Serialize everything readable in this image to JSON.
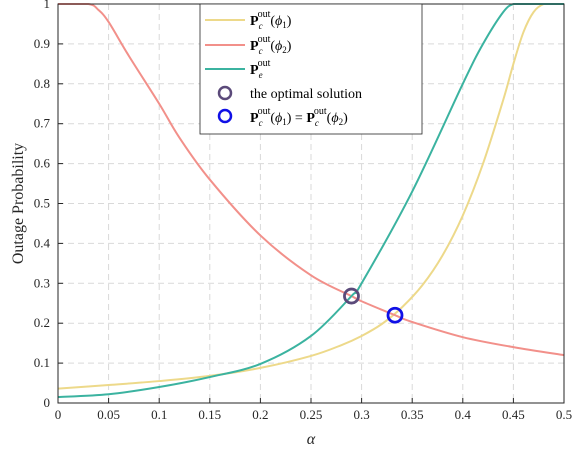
{
  "chart_data": {
    "type": "line",
    "xlabel": "α",
    "ylabel": "Outage Probability",
    "xlim": [
      0,
      0.5
    ],
    "ylim": [
      0,
      1
    ],
    "xticks": [
      0,
      0.05,
      0.1,
      0.15,
      0.2,
      0.25,
      0.3,
      0.35,
      0.4,
      0.45,
      0.5
    ],
    "xtick_labels": [
      "0",
      "0.05",
      "0.1",
      "0.15",
      "0.2",
      "0.25",
      "0.3",
      "0.35",
      "0.4",
      "0.45",
      "0.5"
    ],
    "yticks": [
      0,
      0.1,
      0.2,
      0.3,
      0.4,
      0.5,
      0.6,
      0.7,
      0.8,
      0.9,
      1
    ],
    "ytick_labels": [
      "0",
      "0.1",
      "0.2",
      "0.3",
      "0.4",
      "0.5",
      "0.6",
      "0.7",
      "0.8",
      "0.9",
      "1"
    ],
    "grid": true,
    "legend_position": "top-center",
    "series": [
      {
        "name": "P_c^out(φ1)",
        "color": "#EDD98A",
        "x": [
          0,
          0.05,
          0.1,
          0.15,
          0.2,
          0.25,
          0.28,
          0.3,
          0.32,
          0.34,
          0.36,
          0.38,
          0.4,
          0.42,
          0.44,
          0.45,
          0.46,
          0.47,
          0.48,
          0.49,
          0.5
        ],
        "y": [
          0.036,
          0.045,
          0.055,
          0.068,
          0.088,
          0.118,
          0.145,
          0.168,
          0.198,
          0.24,
          0.295,
          0.37,
          0.47,
          0.6,
          0.76,
          0.85,
          0.93,
          0.98,
          1.0,
          1.0,
          1.0
        ]
      },
      {
        "name": "P_c^out(φ2)",
        "color": "#F2908A",
        "x": [
          0,
          0.03,
          0.04,
          0.05,
          0.07,
          0.1,
          0.12,
          0.15,
          0.2,
          0.25,
          0.29,
          0.3,
          0.333,
          0.35,
          0.4,
          0.45,
          0.5
        ],
        "y": [
          1.0,
          1.0,
          0.985,
          0.955,
          0.87,
          0.75,
          0.665,
          0.56,
          0.42,
          0.32,
          0.268,
          0.255,
          0.22,
          0.203,
          0.165,
          0.14,
          0.12
        ]
      },
      {
        "name": "P_e^out",
        "color": "#3BB3A0",
        "x": [
          0,
          0.05,
          0.1,
          0.15,
          0.2,
          0.25,
          0.29,
          0.3,
          0.35,
          0.4,
          0.42,
          0.44,
          0.45,
          0.46,
          0.5
        ],
        "y": [
          0.015,
          0.022,
          0.04,
          0.065,
          0.098,
          0.168,
          0.268,
          0.3,
          0.53,
          0.8,
          0.9,
          0.98,
          1.0,
          1.0,
          1.0
        ]
      }
    ],
    "markers": [
      {
        "name": "the optimal solution",
        "x": 0.29,
        "y": 0.268,
        "color": "#5B4A7A"
      },
      {
        "name": "P_c^out(φ1) = P_c^out(φ2)",
        "x": 0.333,
        "y": 0.22,
        "color": "#1010E6"
      }
    ]
  }
}
